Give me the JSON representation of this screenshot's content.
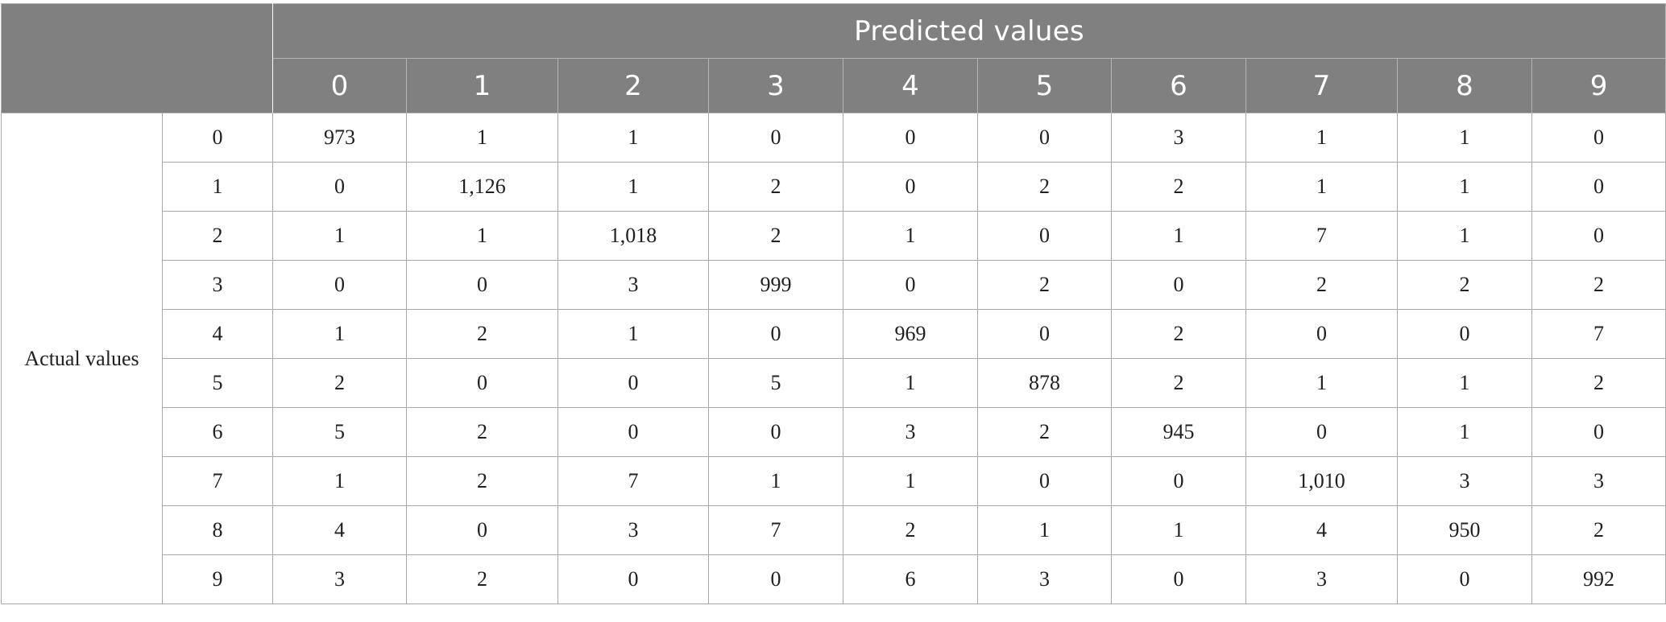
{
  "table": {
    "column_group_label": "Predicted values",
    "row_group_label": "Actual values",
    "columns": [
      "0",
      "1",
      "2",
      "3",
      "4",
      "5",
      "6",
      "7",
      "8",
      "9"
    ],
    "rows": [
      {
        "label": "0",
        "cells": [
          "973",
          "1",
          "1",
          "0",
          "0",
          "0",
          "3",
          "1",
          "1",
          "0"
        ]
      },
      {
        "label": "1",
        "cells": [
          "0",
          "1,126",
          "1",
          "2",
          "0",
          "2",
          "2",
          "1",
          "1",
          "0"
        ]
      },
      {
        "label": "2",
        "cells": [
          "1",
          "1",
          "1,018",
          "2",
          "1",
          "0",
          "1",
          "7",
          "1",
          "0"
        ]
      },
      {
        "label": "3",
        "cells": [
          "0",
          "0",
          "3",
          "999",
          "0",
          "2",
          "0",
          "2",
          "2",
          "2"
        ]
      },
      {
        "label": "4",
        "cells": [
          "1",
          "2",
          "1",
          "0",
          "969",
          "0",
          "2",
          "0",
          "0",
          "7"
        ]
      },
      {
        "label": "5",
        "cells": [
          "2",
          "0",
          "0",
          "5",
          "1",
          "878",
          "2",
          "1",
          "1",
          "2"
        ]
      },
      {
        "label": "6",
        "cells": [
          "5",
          "2",
          "0",
          "0",
          "3",
          "2",
          "945",
          "0",
          "1",
          "0"
        ]
      },
      {
        "label": "7",
        "cells": [
          "1",
          "2",
          "7",
          "1",
          "1",
          "0",
          "0",
          "1,010",
          "3",
          "3"
        ]
      },
      {
        "label": "8",
        "cells": [
          "4",
          "0",
          "3",
          "7",
          "2",
          "1",
          "1",
          "4",
          "950",
          "2"
        ]
      },
      {
        "label": "9",
        "cells": [
          "3",
          "2",
          "0",
          "0",
          "6",
          "3",
          "0",
          "3",
          "0",
          "992"
        ]
      }
    ]
  }
}
